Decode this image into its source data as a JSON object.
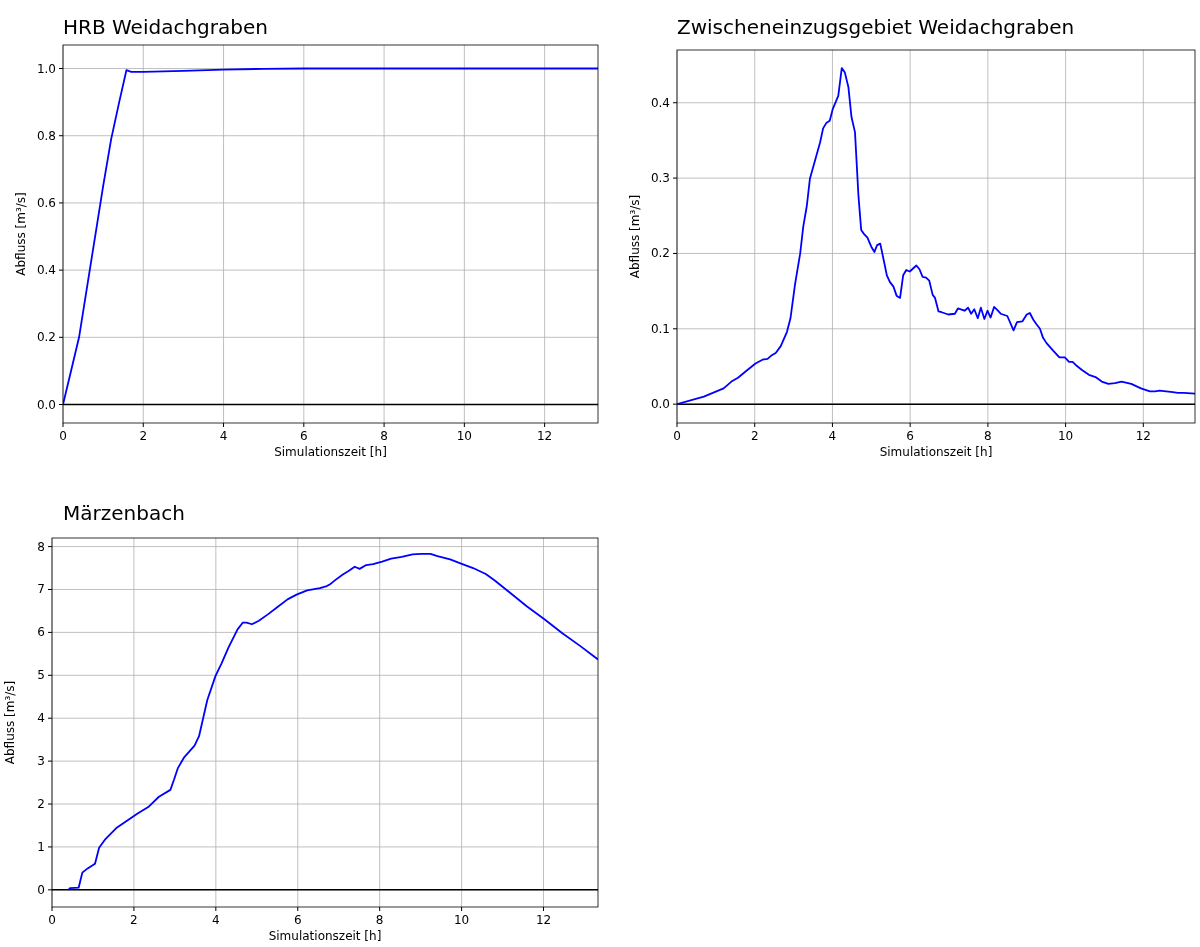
{
  "chart_data": [
    {
      "type": "line",
      "title": "HRB Weidachgraben",
      "xlabel": "Simulationszeit [h]",
      "ylabel": "Abfluss [m³/s]",
      "xlim": [
        0,
        13.33
      ],
      "ylim": [
        -0.055,
        1.07
      ],
      "xticks": [
        0,
        2,
        4,
        6,
        8,
        10,
        12
      ],
      "yticks": [
        {
          "value": 0,
          "label": "0.0"
        },
        {
          "value": 0.2,
          "label": "0.2"
        },
        {
          "value": 0.4,
          "label": "0.4"
        },
        {
          "value": 0.6,
          "label": "0.6"
        },
        {
          "value": 0.8,
          "label": "0.8"
        },
        {
          "value": 1,
          "label": "1.0"
        }
      ],
      "grid": true,
      "ref_lines": [
        {
          "axis": "y",
          "value": 0,
          "color": "#000000"
        }
      ],
      "series": [
        {
          "color": "#0000ff",
          "x": [
            0,
            0.1,
            0.2,
            0.4,
            0.6,
            0.8,
            1.0,
            1.2,
            1.4,
            1.58,
            1.7,
            2,
            3,
            4,
            5,
            6,
            8,
            10,
            12,
            13.33
          ],
          "values": [
            0,
            0.05,
            0.1,
            0.2,
            0.35,
            0.5,
            0.65,
            0.79,
            0.9,
            0.995,
            0.99,
            0.99,
            0.993,
            0.997,
            0.999,
            1.0,
            1.0,
            1.0,
            1.0,
            1.0
          ]
        }
      ]
    },
    {
      "type": "line",
      "title": "Zwischeneinzugsgebiet Weidachgraben",
      "xlabel": "Simulationszeit [h]",
      "ylabel": "Abfluss [m³/s]",
      "xlim": [
        0,
        13.33
      ],
      "ylim": [
        -0.025,
        0.47
      ],
      "xticks": [
        0,
        2,
        4,
        6,
        8,
        10,
        12
      ],
      "yticks": [
        {
          "value": 0,
          "label": "0.0"
        },
        {
          "value": 0.1,
          "label": "0.1"
        },
        {
          "value": 0.2,
          "label": "0.2"
        },
        {
          "value": 0.3,
          "label": "0.3"
        },
        {
          "value": 0.4,
          "label": "0.4"
        }
      ],
      "grid": true,
      "ref_lines": [
        {
          "axis": "y",
          "value": 0,
          "color": "#000000"
        }
      ],
      "series": [
        {
          "color": "#0000ff",
          "x": [
            0,
            0.69,
            1.2,
            1.4,
            1.57,
            1.78,
            2.02,
            2.2,
            2.33,
            2.44,
            2.54,
            2.67,
            2.83,
            2.92,
            3.04,
            3.17,
            3.25,
            3.34,
            3.42,
            3.55,
            3.68,
            3.76,
            3.84,
            3.93,
            4.01,
            4.15,
            4.24,
            4.32,
            4.41,
            4.49,
            4.58,
            4.67,
            4.74,
            4.81,
            4.9,
            5.0,
            5.08,
            5.15,
            5.23,
            5.32,
            5.4,
            5.48,
            5.57,
            5.65,
            5.74,
            5.82,
            5.9,
            5.99,
            6.16,
            6.24,
            6.32,
            6.41,
            6.49,
            6.58,
            6.64,
            6.73,
            6.81,
            6.98,
            7.15,
            7.23,
            7.4,
            7.49,
            7.57,
            7.65,
            7.74,
            7.82,
            7.91,
            7.99,
            8.07,
            8.16,
            8.24,
            8.33,
            8.5,
            8.66,
            8.75,
            8.89,
            9.0,
            9.08,
            9.17,
            9.25,
            9.34,
            9.42,
            9.51,
            9.68,
            9.84,
            9.98,
            10.09,
            10.18,
            10.26,
            10.43,
            10.6,
            10.77,
            10.93,
            11.1,
            11.27,
            11.44,
            11.69,
            11.94,
            12.17,
            12.3,
            12.42,
            12.59,
            12.76,
            12.89,
            13.04,
            13.33
          ],
          "values": [
            0,
            0.01,
            0.021,
            0.03,
            0.035,
            0.044,
            0.054,
            0.059,
            0.06,
            0.065,
            0.068,
            0.077,
            0.096,
            0.114,
            0.16,
            0.2,
            0.236,
            0.263,
            0.299,
            0.323,
            0.347,
            0.366,
            0.373,
            0.376,
            0.392,
            0.409,
            0.446,
            0.44,
            0.421,
            0.381,
            0.361,
            0.276,
            0.231,
            0.226,
            0.221,
            0.209,
            0.202,
            0.211,
            0.213,
            0.191,
            0.171,
            0.162,
            0.156,
            0.144,
            0.141,
            0.171,
            0.178,
            0.176,
            0.184,
            0.179,
            0.169,
            0.168,
            0.164,
            0.145,
            0.141,
            0.123,
            0.122,
            0.119,
            0.12,
            0.127,
            0.124,
            0.128,
            0.12,
            0.126,
            0.114,
            0.128,
            0.113,
            0.124,
            0.115,
            0.129,
            0.125,
            0.12,
            0.117,
            0.098,
            0.109,
            0.11,
            0.119,
            0.121,
            0.112,
            0.106,
            0.1,
            0.088,
            0.081,
            0.071,
            0.062,
            0.062,
            0.056,
            0.056,
            0.052,
            0.045,
            0.039,
            0.036,
            0.03,
            0.027,
            0.028,
            0.03,
            0.027,
            0.021,
            0.017,
            0.017,
            0.018,
            0.017,
            0.016,
            0.015,
            0.015,
            0.014
          ]
        }
      ]
    },
    {
      "type": "line",
      "title": "Märzenbach",
      "xlabel": "Simulationszeit [h]",
      "ylabel": "Abfluss [m³/s]",
      "xlim": [
        0,
        13.33
      ],
      "ylim": [
        -0.4,
        8.2
      ],
      "xticks": [
        0,
        2,
        4,
        6,
        8,
        10,
        12
      ],
      "yticks": [
        0,
        1,
        2,
        3,
        4,
        5,
        6,
        7,
        8
      ],
      "grid": true,
      "ref_lines": [
        {
          "axis": "y",
          "value": 0,
          "color": "#000000"
        }
      ],
      "series": [
        {
          "color": "#0000ff",
          "x": [
            0.4,
            0.44,
            0.65,
            0.74,
            0.87,
            1.05,
            1.15,
            1.31,
            1.57,
            1.83,
            2.09,
            2.35,
            2.61,
            2.89,
            2.98,
            3.07,
            3.22,
            3.48,
            3.59,
            3.79,
            3.99,
            4.14,
            4.31,
            4.53,
            4.66,
            4.75,
            4.88,
            5.05,
            5.27,
            5.49,
            5.75,
            5.97,
            6.23,
            6.54,
            6.71,
            6.8,
            6.93,
            7.1,
            7.24,
            7.39,
            7.51,
            7.67,
            7.84,
            8.06,
            8.28,
            8.54,
            8.8,
            9.02,
            9.24,
            9.41,
            9.72,
            10.02,
            10.28,
            10.59,
            10.81,
            11.16,
            11.59,
            12.03,
            12.46,
            12.9,
            13.33
          ],
          "values": [
            0,
            0.04,
            0.05,
            0.4,
            0.5,
            0.61,
            0.98,
            1.19,
            1.44,
            1.61,
            1.78,
            1.93,
            2.17,
            2.33,
            2.57,
            2.83,
            3.08,
            3.36,
            3.58,
            4.42,
            4.98,
            5.28,
            5.65,
            6.07,
            6.23,
            6.23,
            6.19,
            6.27,
            6.42,
            6.58,
            6.77,
            6.88,
            6.98,
            7.03,
            7.08,
            7.13,
            7.23,
            7.35,
            7.43,
            7.53,
            7.48,
            7.57,
            7.59,
            7.65,
            7.72,
            7.76,
            7.82,
            7.83,
            7.83,
            7.78,
            7.7,
            7.59,
            7.5,
            7.36,
            7.21,
            6.94,
            6.61,
            6.3,
            5.98,
            5.68,
            5.37
          ]
        }
      ]
    }
  ]
}
